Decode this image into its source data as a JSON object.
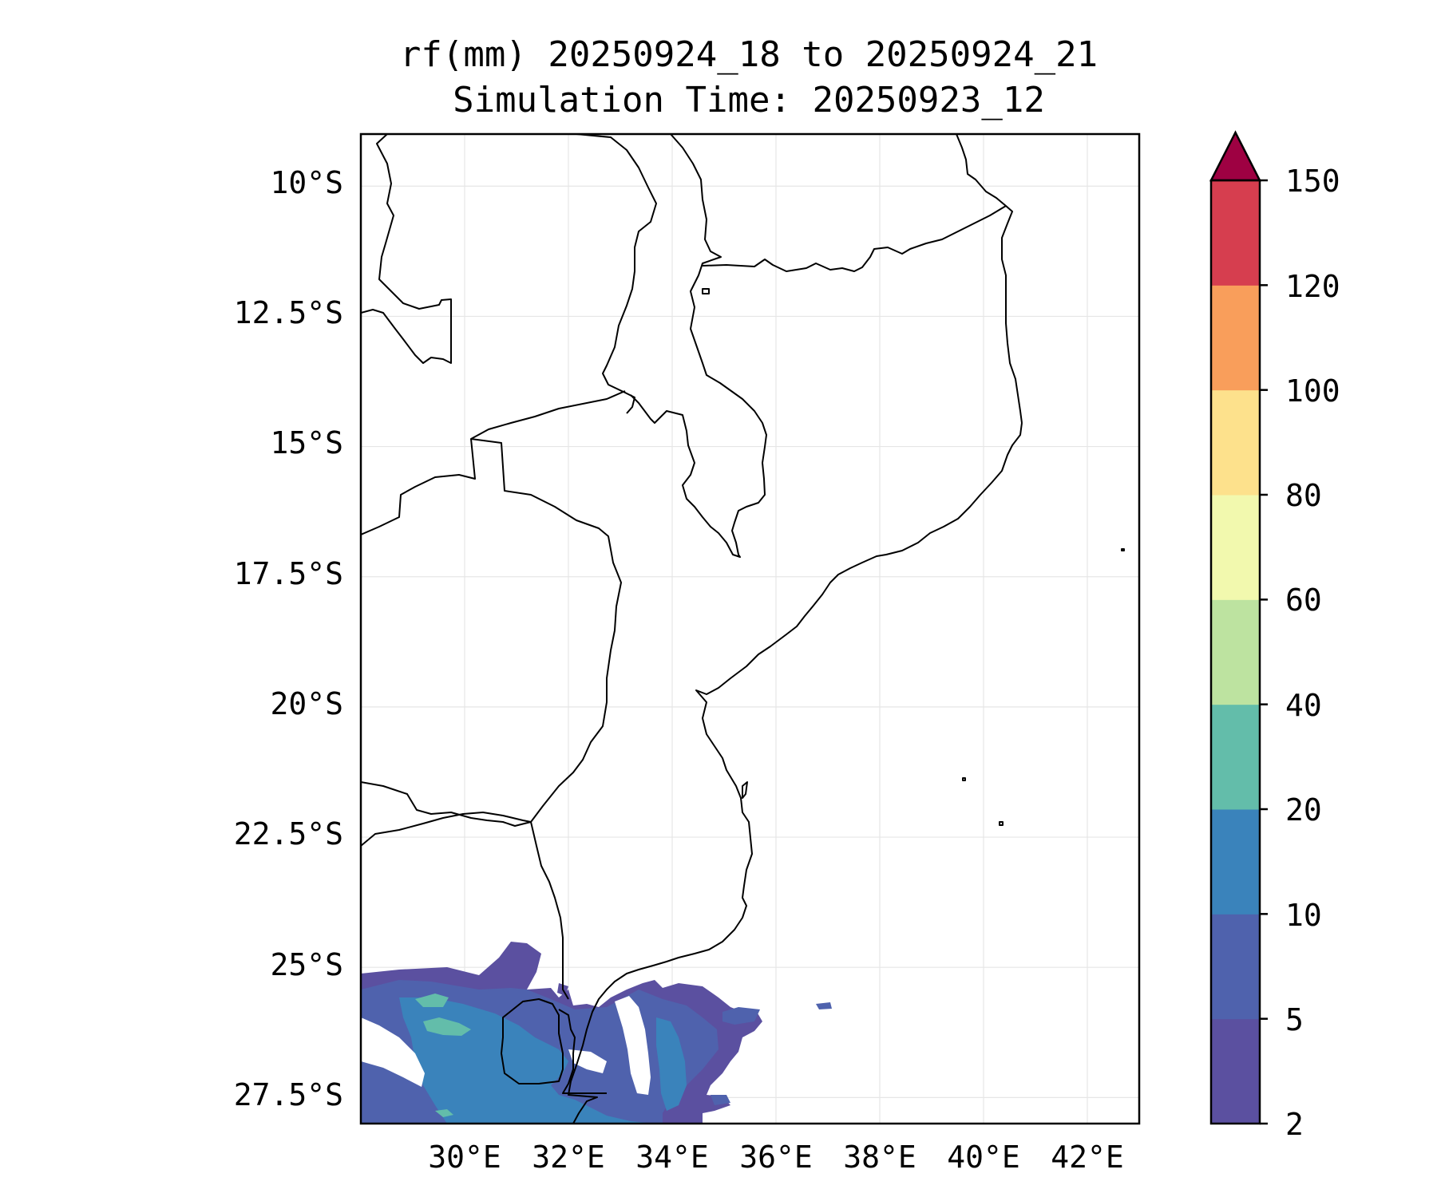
{
  "title": {
    "line1": "rf(mm) 20250924_18 to 20250924_21",
    "line2": "Simulation Time: 20250923_12"
  },
  "map": {
    "lon_range": [
      28.0,
      43.0
    ],
    "lat_range": [
      -28.0,
      -9.0
    ],
    "lat_ticks": [
      {
        "value": -10.0,
        "label": "10°S"
      },
      {
        "value": -12.5,
        "label": "12.5°S"
      },
      {
        "value": -15.0,
        "label": "15°S"
      },
      {
        "value": -17.5,
        "label": "17.5°S"
      },
      {
        "value": -20.0,
        "label": "20°S"
      },
      {
        "value": -22.5,
        "label": "22.5°S"
      },
      {
        "value": -25.0,
        "label": "25°S"
      },
      {
        "value": -27.5,
        "label": "27.5°S"
      }
    ],
    "lon_ticks": [
      {
        "value": 30,
        "label": "30°E"
      },
      {
        "value": 32,
        "label": "32°E"
      },
      {
        "value": 34,
        "label": "34°E"
      },
      {
        "value": 36,
        "label": "36°E"
      },
      {
        "value": 38,
        "label": "38°E"
      },
      {
        "value": 40,
        "label": "40°E"
      },
      {
        "value": 42,
        "label": "42°E"
      }
    ],
    "grid": true
  },
  "colorbar": {
    "levels": [
      2,
      5,
      10,
      20,
      40,
      60,
      80,
      100,
      120,
      150
    ],
    "labels": [
      "2",
      "5",
      "10",
      "20",
      "40",
      "60",
      "80",
      "100",
      "120",
      "150"
    ],
    "colors": [
      "#5b50a0",
      "#4f62ad",
      "#3a83bb",
      "#63bdaa",
      "#bde3a0",
      "#f2f9ae",
      "#fde18c",
      "#f99e5b",
      "#d63e4f",
      "#9e0142"
    ],
    "extend": "max"
  }
}
